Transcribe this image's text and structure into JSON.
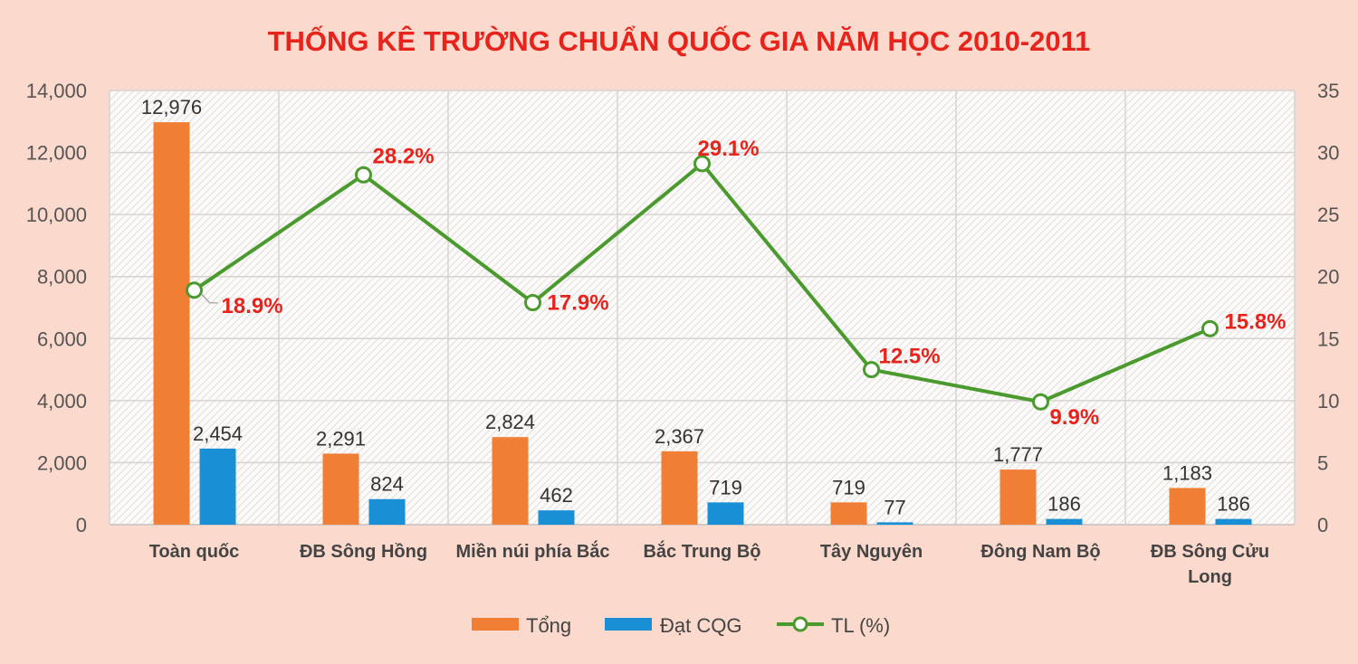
{
  "chart_data": {
    "type": "bar",
    "title": "THỐNG KÊ TRƯỜNG CHUẨN QUỐC GIA NĂM HỌC 2010-2011",
    "categories": [
      [
        "Toàn quốc"
      ],
      [
        "ĐB Sông Hồng"
      ],
      [
        "Miền núi phía Bắc"
      ],
      [
        "Bắc Trung Bộ"
      ],
      [
        "Tây Nguyên"
      ],
      [
        "Đông Nam Bộ"
      ],
      [
        "ĐB Sông Cửu",
        "Long"
      ]
    ],
    "series": [
      {
        "name": "Tổng",
        "type": "bar",
        "axis": "left",
        "color": "#f07f35",
        "values": [
          12976,
          2291,
          2824,
          2367,
          719,
          1777,
          1183
        ],
        "labels": [
          "12,976",
          "2,291",
          "2,824",
          "2,367",
          "719",
          "1,777",
          "1,183"
        ]
      },
      {
        "name": "Đạt CQG",
        "type": "bar",
        "axis": "left",
        "color": "#1a8fd6",
        "values": [
          2454,
          824,
          462,
          719,
          77,
          186,
          186
        ],
        "labels": [
          "2,454",
          "824",
          "462",
          "719",
          "77",
          "186",
          "186"
        ]
      },
      {
        "name": "TL (%)",
        "type": "line",
        "axis": "right",
        "color": "#4a9a2e",
        "values": [
          18.9,
          28.2,
          17.9,
          29.1,
          12.5,
          9.9,
          15.8
        ],
        "labels": [
          "18.9%",
          "28.2%",
          "17.9%",
          "29.1%",
          "12.5%",
          "9.9%",
          "15.8%"
        ]
      }
    ],
    "y_left": {
      "lim": [
        0,
        14000
      ],
      "ticks": [
        "0",
        "2,000",
        "4,000",
        "6,000",
        "8,000",
        "10,000",
        "12,000",
        "14,000"
      ]
    },
    "y_right": {
      "lim": [
        0,
        35
      ],
      "ticks": [
        "0",
        "5",
        "10",
        "15",
        "20",
        "25",
        "30",
        "35"
      ]
    },
    "grid": true,
    "legend_position": "bottom"
  }
}
